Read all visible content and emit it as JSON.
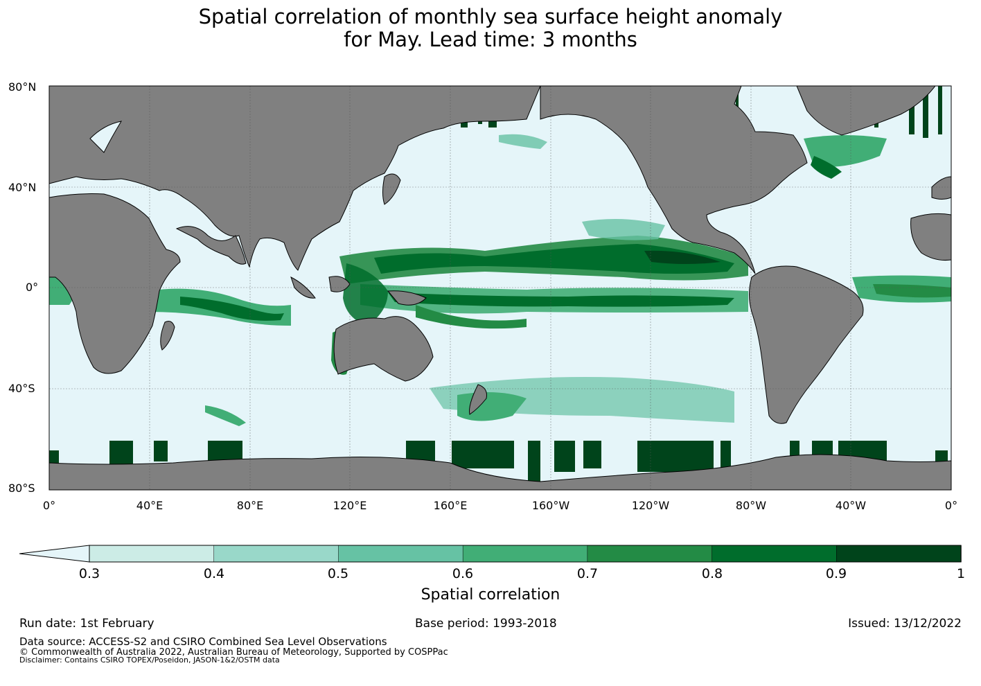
{
  "title_line1": "Spatial correlation of monthly sea surface height anomaly",
  "title_line2": "for May. Lead time: 3 months",
  "map": {
    "lat_labels": [
      "80°N",
      "40°N",
      "0°",
      "40°S",
      "80°S"
    ],
    "lat_values": [
      80,
      40,
      0,
      -40,
      -80
    ],
    "lon_labels": [
      "0°",
      "40°E",
      "80°E",
      "120°E",
      "160°E",
      "160°W",
      "120°W",
      "80°W",
      "40°W",
      "0°"
    ],
    "lon_values": [
      0,
      40,
      80,
      120,
      160,
      200,
      240,
      280,
      320,
      360
    ],
    "ocean_color": "#e5f5f9",
    "land_color": "#808080"
  },
  "colorbar": {
    "ticks": [
      "0.3",
      "0.4",
      "0.5",
      "0.6",
      "0.7",
      "0.8",
      "0.9",
      "1"
    ],
    "colors": [
      "#ccece6",
      "#99d8c9",
      "#66c2a4",
      "#41ae76",
      "#238b45",
      "#006d2c",
      "#00441b"
    ],
    "under_color": "#e5f5f9",
    "label": "Spatial correlation"
  },
  "footer": {
    "run_date": "Run date: 1st February",
    "base_period": "Base period: 1993-2018",
    "issued": "Issued: 13/12/2022",
    "data_source": "Data source: ACCESS-S2 and CSIRO Combined Sea Level Observations",
    "copyright": "© Commonwealth of Australia 2022, Australian Bureau of Meteorology, Supported by COSPPac",
    "disclaimer": "Disclaimer: Contains CSIRO TOPEX/Poseidon, JASON-1&2/OSTM data"
  }
}
